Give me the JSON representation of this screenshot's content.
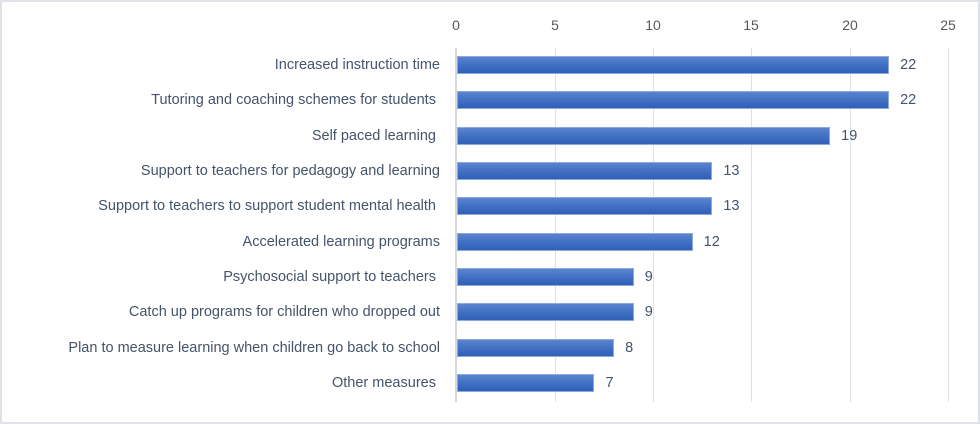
{
  "chart_data": {
    "type": "bar",
    "orientation": "horizontal",
    "title": "",
    "xlabel": "",
    "ylabel": "",
    "xlim": [
      0,
      25
    ],
    "x_ticks": [
      0,
      5,
      10,
      15,
      20,
      25
    ],
    "x_axis_position": "top",
    "grid": true,
    "legend": null,
    "data_labels": true,
    "bar_color": "#4472C4",
    "categories": [
      "Increased instruction time",
      "Tutoring and coaching schemes for students ",
      "Self paced learning ",
      "Support to teachers for pedagogy and learning",
      "Support to teachers to support student mental health ",
      "Accelerated learning programs",
      "Psychosocial support to teachers ",
      "Catch up programs for children who dropped out",
      "Plan to measure learning when children go back to school",
      "Other measures "
    ],
    "values": [
      22,
      22,
      19,
      13,
      13,
      12,
      9,
      9,
      8,
      7
    ]
  },
  "axis": {
    "ticks": [
      "0",
      "5",
      "10",
      "15",
      "20",
      "25"
    ]
  },
  "bars": [
    {
      "label": "Increased instruction time",
      "value": "22"
    },
    {
      "label": "Tutoring and coaching schemes for students ",
      "value": "22"
    },
    {
      "label": "Self paced learning ",
      "value": "19"
    },
    {
      "label": "Support to teachers for pedagogy and learning",
      "value": "13"
    },
    {
      "label": "Support to teachers to support student mental health ",
      "value": "13"
    },
    {
      "label": "Accelerated learning programs",
      "value": "12"
    },
    {
      "label": "Psychosocial support to teachers ",
      "value": "9"
    },
    {
      "label": "Catch up programs for children who dropped out",
      "value": "9"
    },
    {
      "label": "Plan to measure learning when children go back to school",
      "value": "8"
    },
    {
      "label": "Other measures ",
      "value": "7"
    }
  ]
}
